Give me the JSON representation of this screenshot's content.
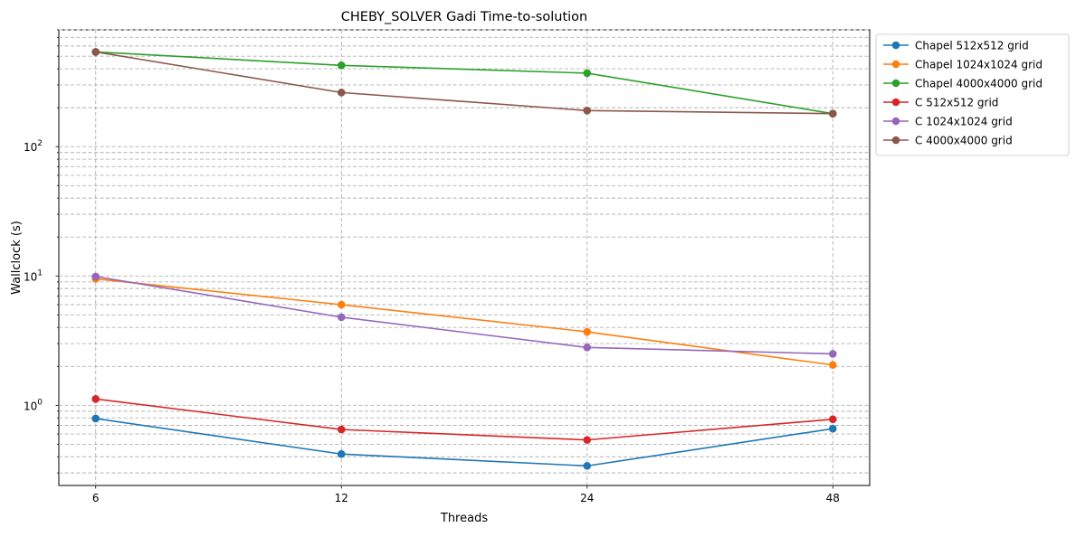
{
  "chart_data": {
    "type": "line",
    "title": "CHEBY_SOLVER Gadi Time-to-solution",
    "xlabel": "Threads",
    "ylabel": "Wallclock (s)",
    "x": [
      6,
      12,
      24,
      48
    ],
    "x_tick_labels": [
      "6",
      "12",
      "24",
      "48"
    ],
    "x_scale": "log2",
    "y_scale": "log",
    "ylim": [
      0.24,
      800
    ],
    "y_tick_labels": [
      {
        "value": 1,
        "base": "10",
        "exp": "0"
      },
      {
        "value": 10,
        "base": "10",
        "exp": "1"
      },
      {
        "value": 100,
        "base": "10",
        "exp": "2"
      }
    ],
    "grid": "major and minor, dashed",
    "legend_position": "outside top-right",
    "series": [
      {
        "name": "Chapel 512x512 grid",
        "color": "#1f77b4",
        "values": [
          0.79,
          0.42,
          0.34,
          0.66
        ]
      },
      {
        "name": "Chapel 1024x1024 grid",
        "color": "#ff7f0e",
        "values": [
          9.5,
          6.0,
          3.7,
          2.05
        ]
      },
      {
        "name": "Chapel 4000x4000 grid",
        "color": "#2ca02c",
        "values": [
          540,
          425,
          370,
          180
        ]
      },
      {
        "name": "C 512x512 grid",
        "color": "#d62728",
        "values": [
          1.12,
          0.65,
          0.54,
          0.78
        ]
      },
      {
        "name": "C 1024x1024 grid",
        "color": "#9467bd",
        "values": [
          9.9,
          4.8,
          2.8,
          2.5
        ]
      },
      {
        "name": "C 4000x4000 grid",
        "color": "#8c564b",
        "values": [
          540,
          262,
          190,
          180
        ]
      }
    ]
  }
}
